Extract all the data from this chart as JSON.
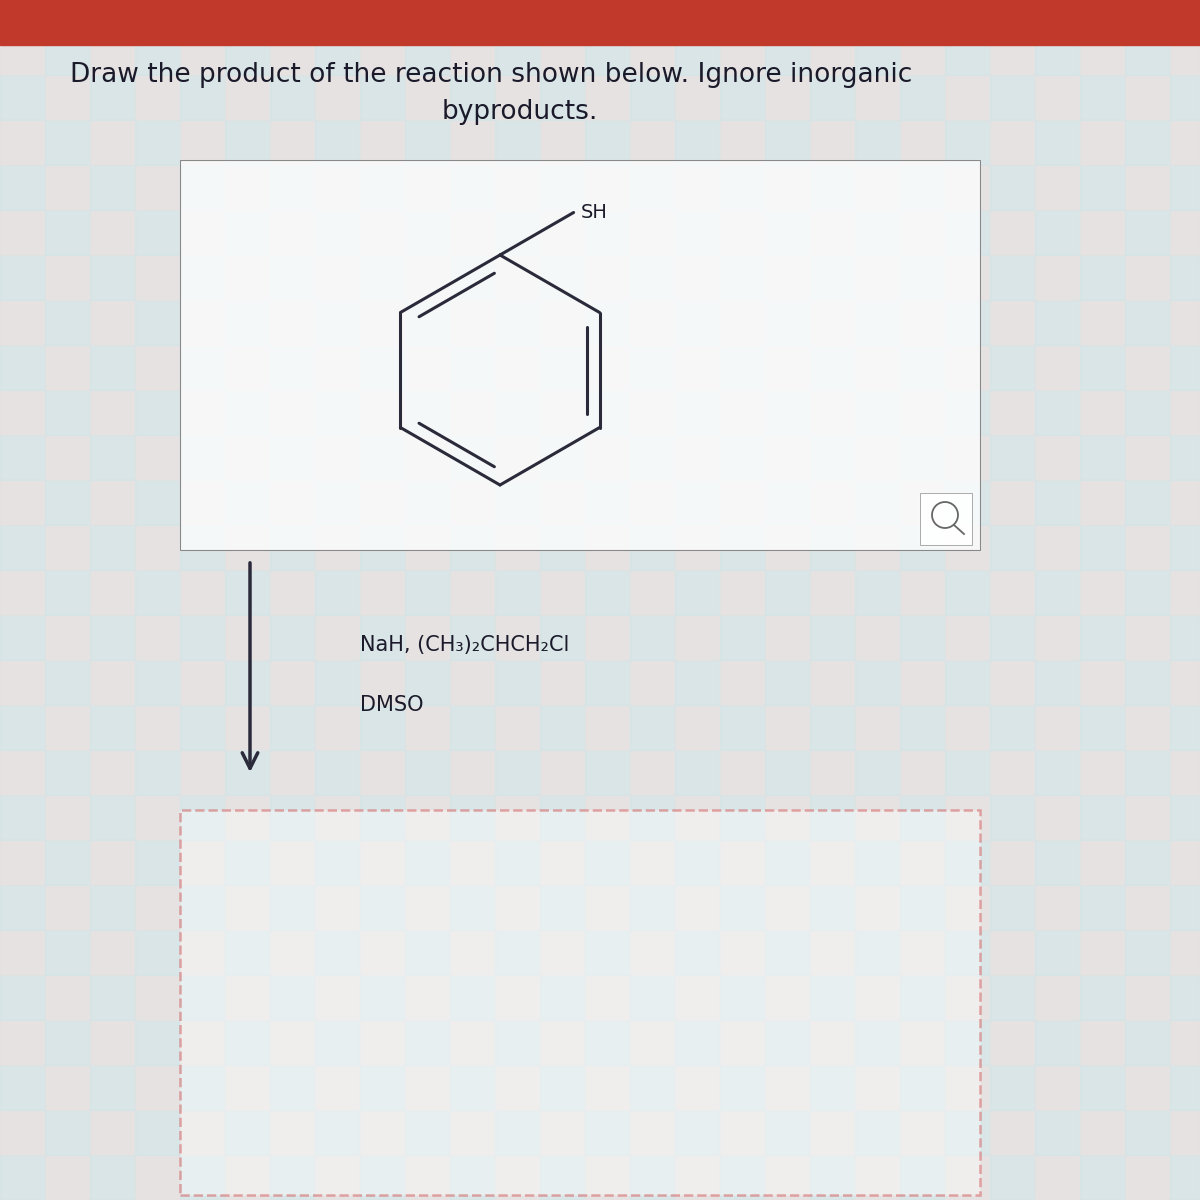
{
  "title_line1": "Draw the product of the reaction shown below. Ignore inorganic",
  "title_line2": "byproducts.",
  "title_fontsize": 19,
  "reagent_line1": "NaH, (CH₃)₂CHCH₂Cl",
  "reagent_line2": "DMSO",
  "reagent_fontsize": 15,
  "sh_label": "SH",
  "background_color": "#e8e8e8",
  "header_color": "#c0392b",
  "line_color": "#2a2a3a",
  "dashed_box_color": "#cc3333",
  "text_color": "#1a1a2a",
  "tile_color1": "#c8e8ee",
  "tile_color2": "#f2dede",
  "tile_size": 0.45
}
